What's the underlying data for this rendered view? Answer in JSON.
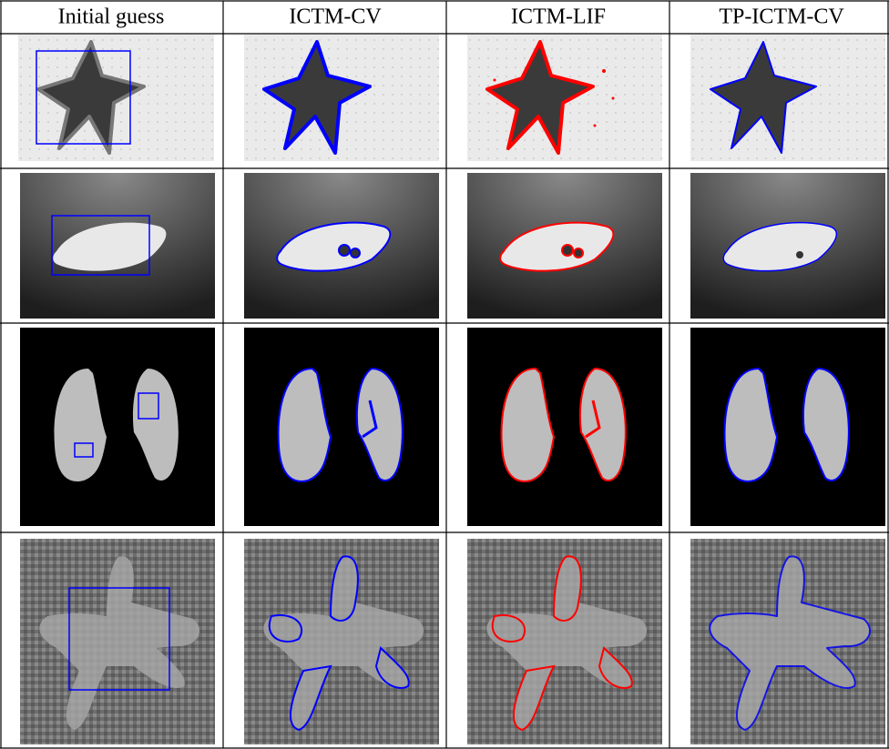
{
  "table": {
    "header": [
      "Initial guess",
      "ICTM-CV",
      "ICTM-LIF",
      "TP-ICTM-CV"
    ]
  }
}
